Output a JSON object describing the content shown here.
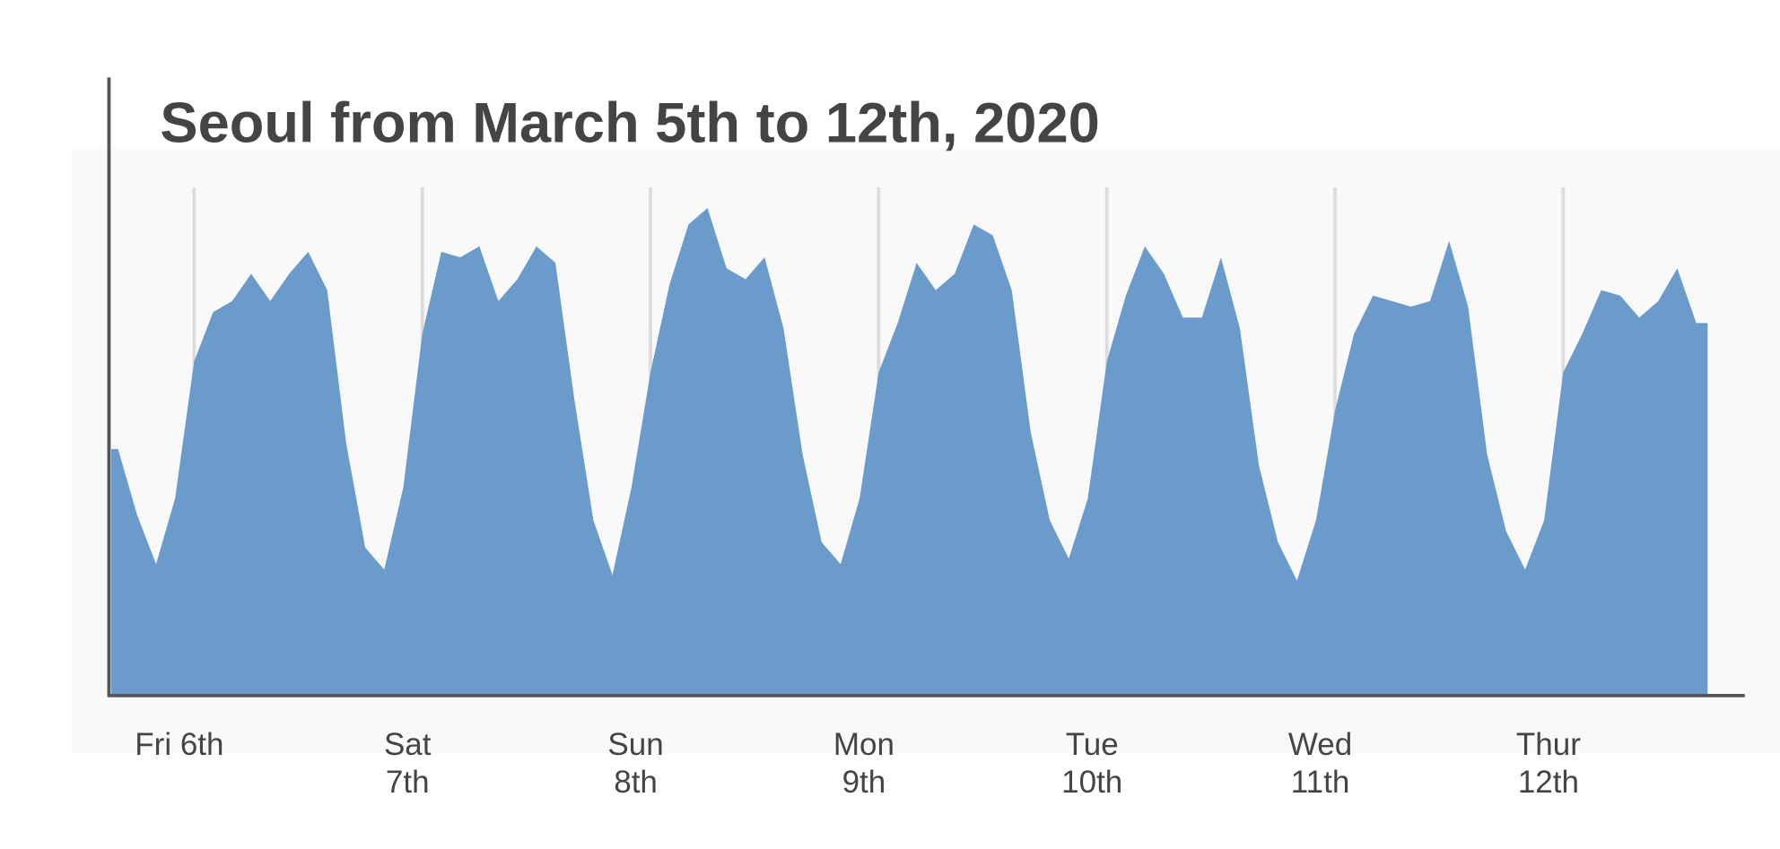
{
  "chart_data": {
    "type": "area",
    "title": "Seoul from March 5th to 12th, 2020",
    "categories": [
      null,
      null,
      null,
      null,
      "Fri 6th",
      null,
      null,
      null,
      null,
      null,
      null,
      null,
      null,
      null,
      null,
      null,
      "Sat 7th",
      null,
      null,
      null,
      null,
      null,
      null,
      null,
      null,
      null,
      null,
      null,
      "Sun 8th",
      null,
      null,
      null,
      null,
      null,
      null,
      null,
      null,
      null,
      null,
      null,
      "Mon 9th",
      null,
      null,
      null,
      null,
      null,
      null,
      null,
      null,
      null,
      null,
      null,
      "Tue 10th",
      null,
      null,
      null,
      null,
      null,
      null,
      null,
      null,
      null,
      null,
      null,
      "Wed 11th",
      null,
      null,
      null,
      null,
      null,
      null,
      null,
      null,
      null,
      null,
      null,
      "Thur 12th",
      null,
      null,
      null,
      null,
      null,
      null,
      null
    ],
    "values": [
      45,
      33,
      24,
      36,
      61,
      70,
      72,
      77,
      72,
      77,
      81,
      74,
      46,
      27,
      23,
      38,
      66,
      81,
      80,
      82,
      72,
      76,
      82,
      79,
      54,
      32,
      22,
      38,
      59,
      75,
      86,
      89,
      78,
      76,
      80,
      67,
      44,
      28,
      24,
      36,
      59,
      68,
      79,
      74,
      77,
      86,
      84,
      74,
      48,
      32,
      25,
      36,
      61,
      73,
      82,
      77,
      69,
      69,
      80,
      67,
      42,
      28,
      21,
      32,
      52,
      66,
      73,
      72,
      71,
      72,
      83,
      71,
      44,
      30,
      23,
      32,
      59,
      66,
      74,
      73,
      69,
      72,
      78,
      68
    ],
    "color": "#6b9bcb",
    "ylim": [
      0,
      100
    ],
    "grid": true
  }
}
